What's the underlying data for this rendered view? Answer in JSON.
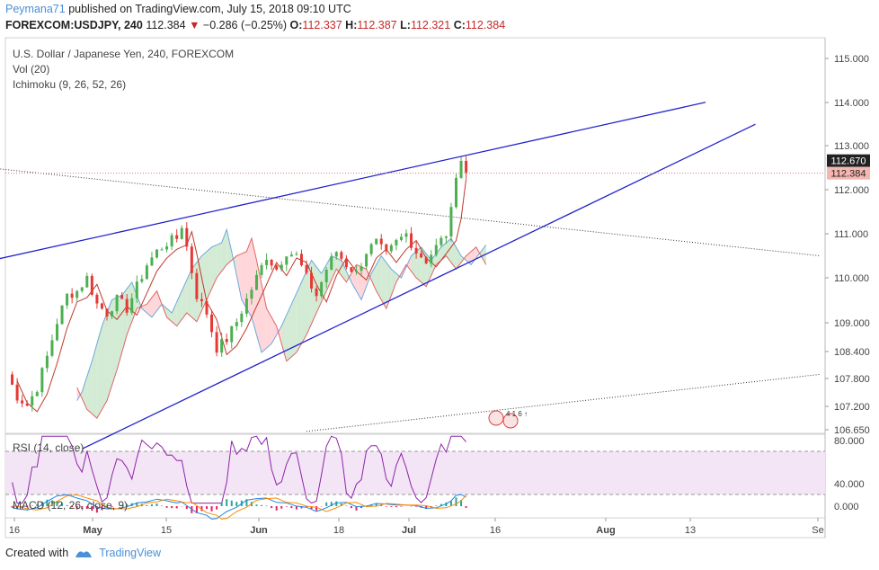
{
  "header": {
    "author": "Peymana71",
    "published_text": "published on TradingView.com, July 15, 2018 09:10 UTC",
    "symbol": "FOREXCOM:USDJPY, 240",
    "last": "112.384",
    "change": "−0.286 (−0.25%)",
    "open_label": "O:",
    "open": "112.337",
    "high_label": "H:",
    "high": "112.387",
    "low_label": "L:",
    "low": "112.321",
    "close_label": "C:",
    "close": "112.384"
  },
  "legend": {
    "title": "U.S. Dollar / Japanese Yen, 240, FOREXCOM",
    "vol": "Vol (20)",
    "ichimoku": "Ichimoku (9, 26, 52, 26)",
    "rsi": "RSI (14, close)",
    "macd": "MACD (12, 26, close, 9)"
  },
  "footer": {
    "created_with": "Created with",
    "brand": "TradingView"
  },
  "colors": {
    "up": "#4caf50",
    "down": "#e53935",
    "trendline": "#2222cc",
    "cloud_bull": "#c8e6c9",
    "cloud_bear": "#ffcdd2",
    "rsi": "#8e24aa",
    "rsi_band": "#f3e5f5",
    "price_tag_current": "#f4b6b0",
    "price_tag_high": "#222222"
  },
  "chart_data": {
    "type": "candlestick",
    "title": "U.S. Dollar / Japanese Yen, 240, FOREXCOM",
    "symbol": "USDJPY",
    "timeframe": "240",
    "y_ticks": [
      "115.000",
      "114.000",
      "113.000",
      "112.000",
      "111.000",
      "110.000",
      "109.000",
      "108.400",
      "107.800",
      "107.200",
      "106.650"
    ],
    "x_ticks": [
      "16",
      "May",
      "15",
      "Jun",
      "18",
      "Jul",
      "16",
      "Aug",
      "13",
      "Se"
    ],
    "price_labels": {
      "high_marker": "112.670",
      "current": "112.384"
    },
    "ylim": [
      106.6,
      115.4
    ],
    "price_path": [
      [
        0,
        107.8
      ],
      [
        2,
        107.3
      ],
      [
        4,
        107.1
      ],
      [
        6,
        107.5
      ],
      [
        8,
        108.2
      ],
      [
        10,
        109.0
      ],
      [
        12,
        109.6
      ],
      [
        14,
        109.7
      ],
      [
        16,
        110.0
      ],
      [
        18,
        109.4
      ],
      [
        20,
        109.2
      ],
      [
        22,
        109.5
      ],
      [
        24,
        109.3
      ],
      [
        26,
        109.8
      ],
      [
        28,
        110.3
      ],
      [
        30,
        110.6
      ],
      [
        32,
        110.8
      ],
      [
        34,
        110.9
      ],
      [
        35,
        111.2
      ],
      [
        36,
        110.7
      ],
      [
        38,
        109.6
      ],
      [
        40,
        109.2
      ],
      [
        42,
        108.4
      ],
      [
        44,
        108.6
      ],
      [
        46,
        109.0
      ],
      [
        48,
        109.5
      ],
      [
        50,
        110.0
      ],
      [
        52,
        110.5
      ],
      [
        54,
        110.2
      ],
      [
        56,
        110.6
      ],
      [
        58,
        110.5
      ],
      [
        60,
        110.0
      ],
      [
        62,
        109.6
      ],
      [
        64,
        110.2
      ],
      [
        66,
        110.6
      ],
      [
        68,
        110.3
      ],
      [
        70,
        110.1
      ],
      [
        72,
        110.6
      ],
      [
        74,
        110.8
      ],
      [
        76,
        110.5
      ],
      [
        78,
        110.8
      ],
      [
        80,
        111.0
      ],
      [
        82,
        110.6
      ],
      [
        84,
        110.4
      ],
      [
        86,
        110.7
      ],
      [
        88,
        111.0
      ],
      [
        89,
        111.5
      ],
      [
        90,
        112.4
      ],
      [
        91,
        112.7
      ],
      [
        92,
        112.38
      ]
    ],
    "trendlines": [
      {
        "name": "upper-channel",
        "from": [
          -3,
          110.4
        ],
        "to": [
          140,
          114.0
        ]
      },
      {
        "name": "lower-channel",
        "from": [
          15,
          106.1
        ],
        "to": [
          150,
          113.5
        ]
      },
      {
        "name": "dotted-descending",
        "from": [
          -3,
          112.5
        ],
        "to": [
          163,
          110.5
        ]
      },
      {
        "name": "dotted-ascending",
        "from": [
          60,
          106.5
        ],
        "to": [
          163,
          107.8
        ]
      }
    ],
    "rsi": {
      "ticks": [
        "80.000",
        "40.000"
      ],
      "levels": [
        70,
        30
      ]
    },
    "macd": {
      "ticks": [
        "0.000"
      ]
    }
  }
}
